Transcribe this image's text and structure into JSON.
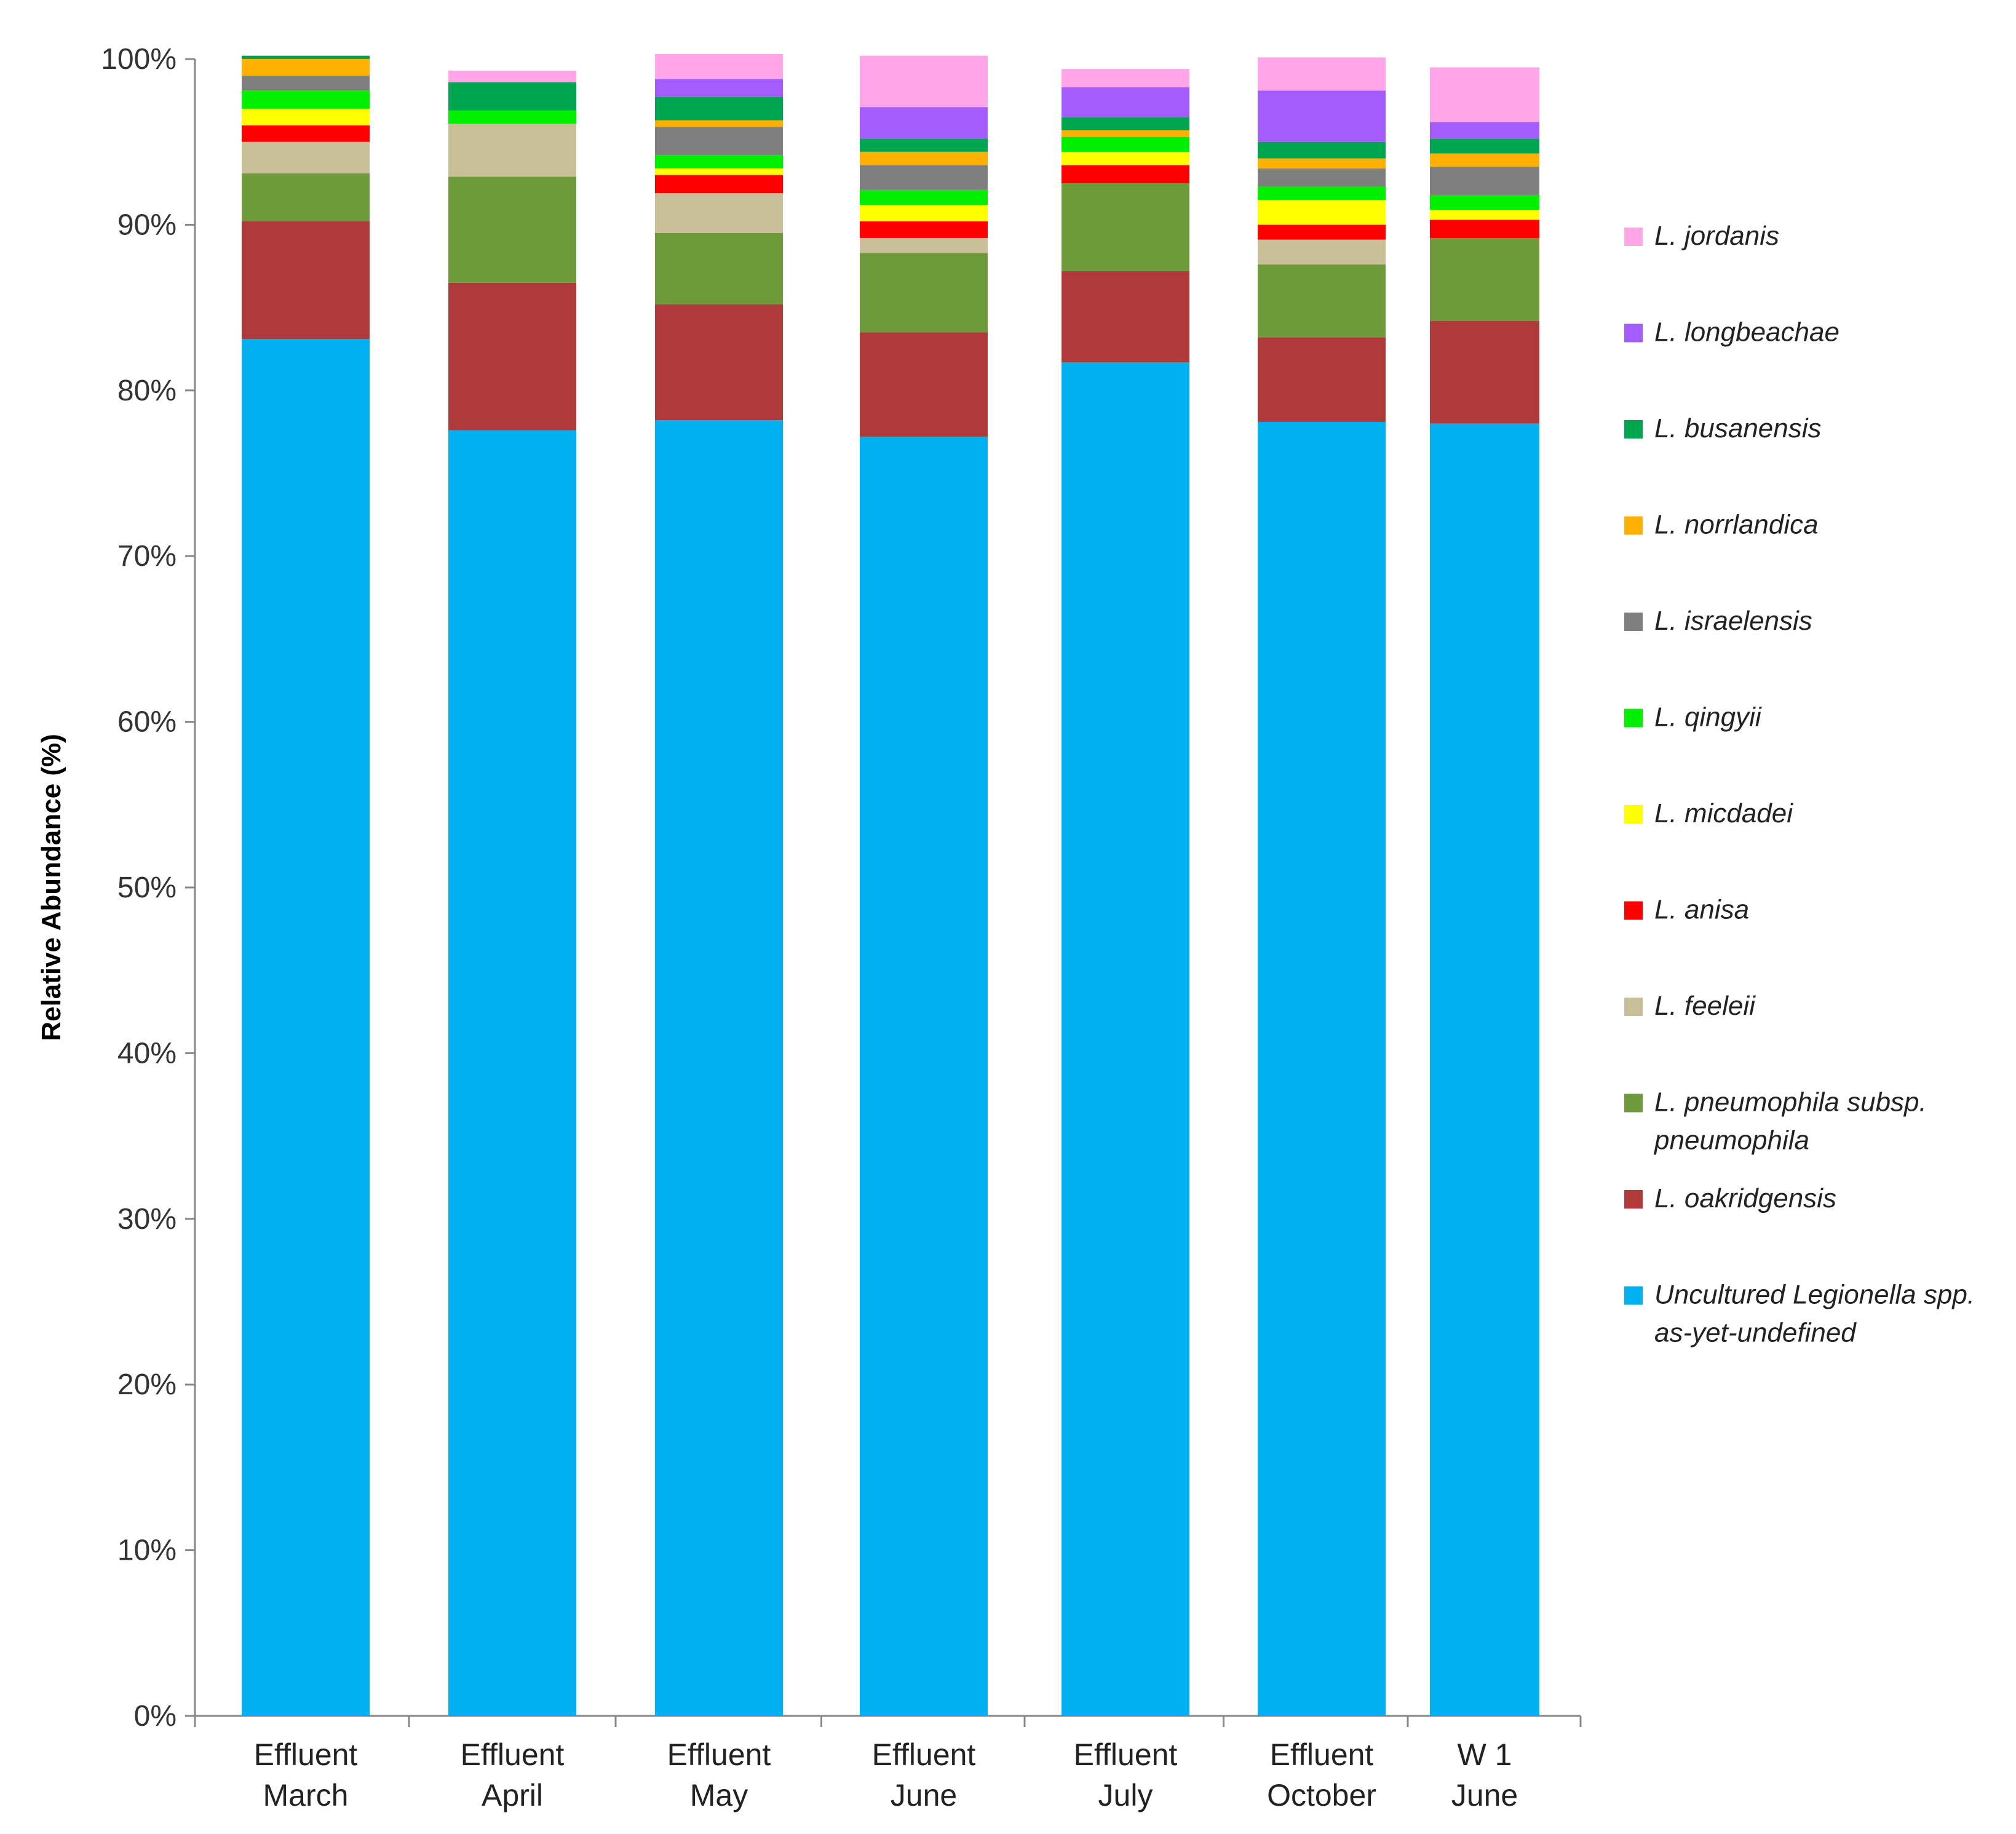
{
  "chart_data": {
    "type": "stacked_bar_percent",
    "title": "",
    "xlabel": "",
    "ylabel": "Relative Abundance (%)",
    "ylim": [
      0,
      100
    ],
    "yticks": [
      "0%",
      "10%",
      "20%",
      "30%",
      "40%",
      "50%",
      "60%",
      "70%",
      "80%",
      "90%",
      "100%"
    ],
    "categories": [
      [
        "Effluent",
        "March"
      ],
      [
        "Effluent",
        "April"
      ],
      [
        "Effluent",
        "May"
      ],
      [
        "Effluent",
        "June"
      ],
      [
        "Effluent",
        "July"
      ],
      [
        "Effluent",
        "October"
      ],
      [
        "W 1",
        "June"
      ]
    ],
    "series": [
      {
        "name": [
          "Uncultured Legionella spp.",
          "as-yet-undefined"
        ],
        "color": "#00B0F0",
        "values": [
          83.1,
          77.6,
          78.2,
          77.2,
          81.7,
          78.1,
          78.0
        ]
      },
      {
        "name": [
          "L. oakridgensis"
        ],
        "color": "#B03A3A",
        "values": [
          7.1,
          8.9,
          7.0,
          6.3,
          5.5,
          5.1,
          6.2
        ]
      },
      {
        "name": [
          "L. pneumophila subsp.",
          "pneumophila"
        ],
        "color": "#6F9A3C",
        "values": [
          2.9,
          6.4,
          4.3,
          4.8,
          5.3,
          4.4,
          5.0
        ]
      },
      {
        "name": [
          "L. feeleii"
        ],
        "color": "#C8BE98",
        "values": [
          1.9,
          3.2,
          2.4,
          0.9,
          0.0,
          1.5,
          0.0
        ]
      },
      {
        "name": [
          "L. anisa"
        ],
        "color": "#FF0000",
        "values": [
          1.0,
          0.0,
          1.1,
          1.0,
          1.1,
          0.9,
          1.1
        ]
      },
      {
        "name": [
          "L. micdadei"
        ],
        "color": "#FFFF00",
        "values": [
          1.0,
          0.0,
          0.4,
          1.0,
          0.8,
          1.5,
          0.6
        ]
      },
      {
        "name": [
          "L. qingyii"
        ],
        "color": "#00EE00",
        "values": [
          1.1,
          0.8,
          0.8,
          0.9,
          0.9,
          0.8,
          0.9
        ]
      },
      {
        "name": [
          "L. israelensis"
        ],
        "color": "#7F7F7F",
        "values": [
          0.9,
          0.0,
          1.7,
          1.5,
          0.0,
          1.1,
          1.7
        ]
      },
      {
        "name": [
          "L. norrlandica"
        ],
        "color": "#FFB000",
        "values": [
          1.0,
          0.0,
          0.4,
          0.8,
          0.4,
          0.6,
          0.8
        ]
      },
      {
        "name": [
          "L. busanensis"
        ],
        "color": "#00A550",
        "values": [
          0.2,
          1.7,
          1.4,
          0.8,
          0.8,
          1.0,
          0.9
        ]
      },
      {
        "name": [
          "L. longbeachae"
        ],
        "color": "#A45CFF",
        "values": [
          0.0,
          0.0,
          1.1,
          1.9,
          1.8,
          3.1,
          1.0
        ]
      },
      {
        "name": [
          "L. jordanis"
        ],
        "color": "#FFA5E8",
        "values": [
          0.0,
          0.7,
          1.5,
          3.1,
          1.1,
          2.0,
          3.3
        ]
      }
    ],
    "legend_position": "right",
    "grid": false
  }
}
